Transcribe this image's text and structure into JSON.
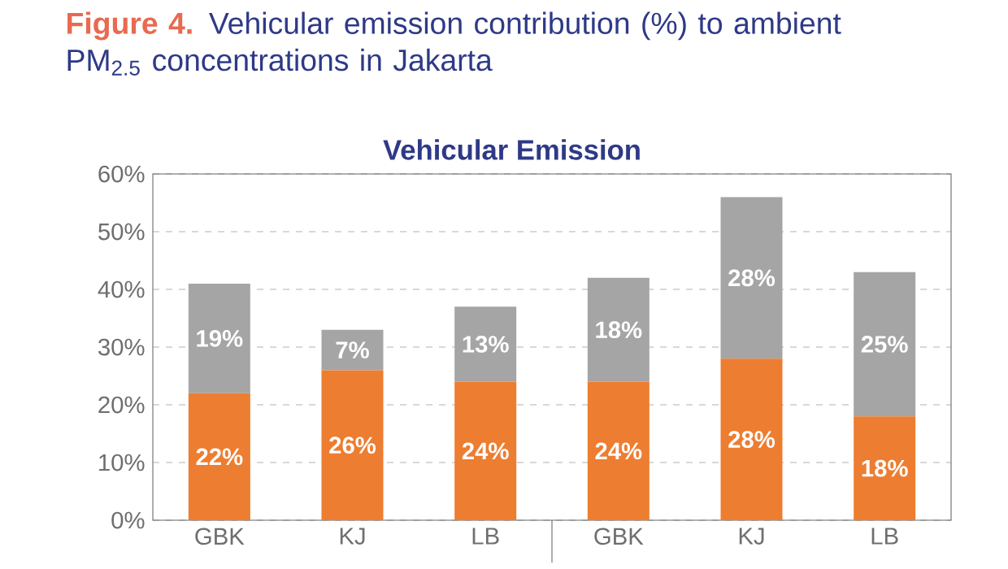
{
  "chart_data": {
    "type": "bar",
    "stacked": true,
    "title": "**Figure 4.** Vehicular emission contribution (%) to ambient PM$_{2.5}$ concentrations in Jakarta",
    "subtitle": "Vehicular Emission",
    "categories": [
      "GBK",
      "KJ",
      "LB",
      "GBK",
      "KJ",
      "LB"
    ],
    "series": [
      {
        "color": "#ed7d31",
        "values": [
          22,
          26,
          24,
          24,
          28,
          18
        ],
        "value_labels": [
          "22%",
          "26%",
          "24%",
          "24%",
          "28%",
          "18%"
        ]
      },
      {
        "color": "#a5a5a5",
        "values": [
          19,
          7,
          13,
          18,
          28,
          25
        ],
        "value_labels": [
          "19%",
          "7%",
          "13%",
          "18%",
          "28%",
          "25%"
        ]
      }
    ],
    "ylim": [
      0,
      60
    ],
    "yticks": [
      {
        "value": 0,
        "label": "0%"
      },
      {
        "value": 10,
        "label": "10%"
      },
      {
        "value": 20,
        "label": "20%"
      },
      {
        "value": 30,
        "label": "30%"
      },
      {
        "value": 40,
        "label": "40%"
      },
      {
        "value": 50,
        "label": "50%"
      },
      {
        "value": 60,
        "label": "60%"
      }
    ],
    "grid": "y"
  }
}
